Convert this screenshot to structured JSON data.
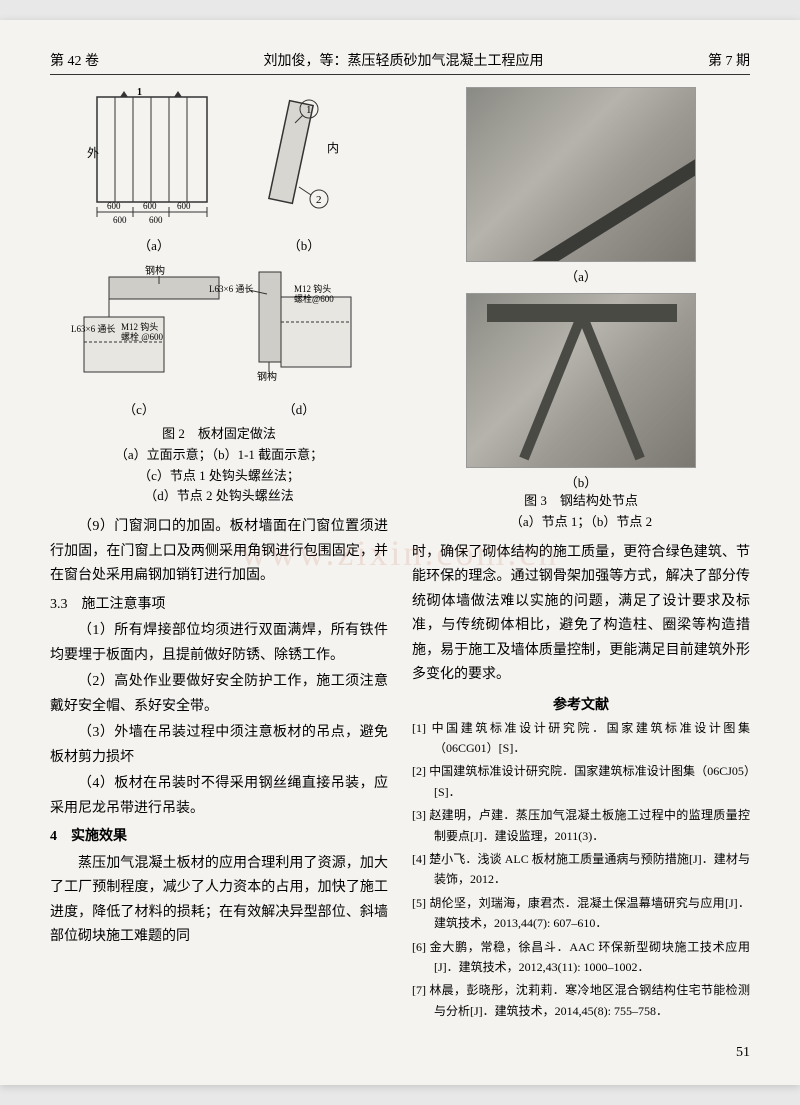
{
  "header": {
    "volume": "第 42 卷",
    "title": "刘加俊，等：蒸压轻质砂加气混凝土工程应用",
    "issue": "第 7 期"
  },
  "watermark": "www.zixin.com.cn",
  "figure2": {
    "sub_a": "（a）",
    "sub_b": "（b）",
    "sub_c": "（c）",
    "sub_d": "（d）",
    "caption_main": "图 2　板材固定做法",
    "caption_a": "（a）立面示意；（b）1-1 截面示意；",
    "caption_c": "（c）节点 1 处钩头螺丝法；",
    "caption_d": "（d）节点 2 处钩头螺丝法",
    "labels": {
      "wai": "外",
      "nei": "内",
      "dim": "600",
      "ganggou": "钢构",
      "L63a": "L63×6 通长",
      "L63b": "L63×6 通长",
      "m12a": "M12 钩头\n螺栓 @600",
      "m12b": "M12 钩头\n螺栓@600",
      "one": "1",
      "two": "2"
    }
  },
  "figure3": {
    "sub_a": "（a）",
    "sub_b": "（b）",
    "caption_main": "图 3　钢结构处节点",
    "caption_sub": "（a）节点 1；（b）节点 2"
  },
  "body_left": {
    "p9": "（9）门窗洞口的加固。板材墙面在门窗位置须进行加固，在门窗上口及两侧采用角钢进行包围固定，并在窗台处采用扁钢加销钉进行加固。",
    "s33": "3.3　施工注意事项",
    "p1": "（1）所有焊接部位均须进行双面满焊，所有铁件均要埋于板面内，且提前做好防锈、除锈工作。",
    "p2": "（2）高处作业要做好安全防护工作，施工须注意戴好安全帽、系好安全带。",
    "p3": "（3）外墙在吊装过程中须注意板材的吊点，避免板材剪力损坏",
    "p4": "（4）板材在吊装时不得采用钢丝绳直接吊装，应采用尼龙吊带进行吊装。",
    "s4": "4　实施效果",
    "p5": "蒸压加气混凝土板材的应用合理利用了资源，加大了工厂预制程度，减少了人力资本的占用，加快了施工进度，降低了材料的损耗；在有效解决异型部位、斜墙部位砌块施工难题的同"
  },
  "body_right": {
    "p_cont": "时，确保了砌体结构的施工质量，更符合绿色建筑、节能环保的理念。通过钢骨架加强等方式，解决了部分传统砌体墙做法难以实施的问题，满足了设计要求及标准，与传统砌体相比，避免了构造柱、圈梁等构造措施，易于施工及墙体质量控制，更能满足目前建筑外形多变化的要求。"
  },
  "references": {
    "title": "参考文献",
    "items": [
      "[1] 中国建筑标准设计研究院．国家建筑标准设计图集（06CG01）[S]．",
      "[2] 中国建筑标准设计研究院．国家建筑标准设计图集（06CJ05）[S]．",
      "[3] 赵建明，卢建．蒸压加气混凝土板施工过程中的监理质量控制要点[J]．建设监理，2011(3)．",
      "[4] 楚小飞．浅谈 ALC 板材施工质量通病与预防措施[J]．建材与装饰，2012．",
      "[5] 胡伦坚，刘瑞海，康君杰．混凝土保温幕墙研究与应用[J]．建筑技术，2013,44(7): 607–610．",
      "[6] 金大鹏，常稳，徐昌斗．AAC 环保新型砌块施工技术应用[J]．建筑技术，2012,43(11): 1000–1002．",
      "[7] 林晨，彭晓彤，沈莉莉．寒冷地区混合钢结构住宅节能检测与分析[J]．建筑技术，2014,45(8): 755–758．"
    ]
  },
  "page_number": "51",
  "colors": {
    "page_bg": "#f5f3ef",
    "text": "#1a1a1a",
    "line": "#333333",
    "photo_dark": "#3a3a36"
  }
}
